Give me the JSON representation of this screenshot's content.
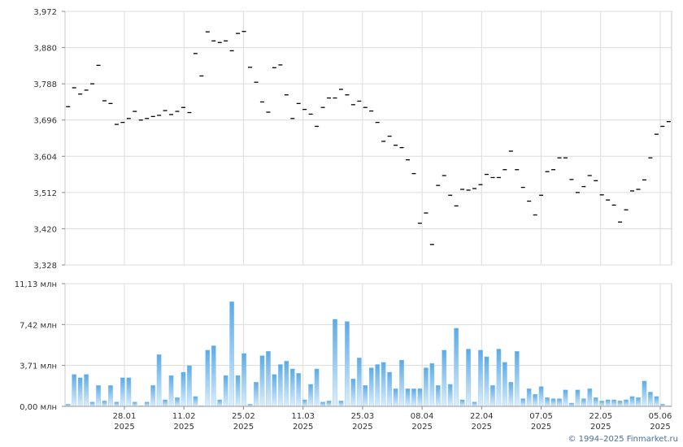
{
  "copyright": "© 1994–2025 Finmarket.ru",
  "chart_data": [
    {
      "type": "scatter",
      "marker": "dash",
      "ylim": [
        3328,
        3972
      ],
      "y_ticks": [
        "3,972",
        "3,880",
        "3,788",
        "3,696",
        "3,604",
        "3,512",
        "3,420",
        "3,328"
      ],
      "grid": true,
      "values": [
        3730,
        3778,
        3762,
        3772,
        3788,
        3835,
        3745,
        3738,
        3685,
        3690,
        3700,
        3718,
        3696,
        3700,
        3705,
        3708,
        3720,
        3710,
        3718,
        3728,
        3715,
        3865,
        3808,
        3920,
        3897,
        3893,
        3897,
        3872,
        3916,
        3921,
        3830,
        3792,
        3742,
        3716,
        3829,
        3836,
        3760,
        3700,
        3738,
        3723,
        3711,
        3680,
        3728,
        3752,
        3752,
        3774,
        3760,
        3735,
        3744,
        3728,
        3719,
        3690,
        3642,
        3655,
        3632,
        3626,
        3595,
        3560,
        3434,
        3460,
        3380,
        3530,
        3555,
        3505,
        3478,
        3520,
        3518,
        3522,
        3532,
        3558,
        3550,
        3550,
        3570,
        3617,
        3570,
        3525,
        3490,
        3455,
        3505,
        3565,
        3570,
        3600,
        3600,
        3545,
        3512,
        3527,
        3555,
        3542,
        3506,
        3493,
        3480,
        3437,
        3468,
        3516,
        3520,
        3544,
        3600,
        3660,
        3680,
        3692
      ]
    },
    {
      "type": "bar",
      "ylim": [
        0,
        11.13
      ],
      "y_ticks": [
        "11,13 млн",
        "7,42 млн",
        "3,71 млн",
        "0,00 млн"
      ],
      "x_ticks": [
        {
          "day": "28.01",
          "year": "2025"
        },
        {
          "day": "11.02",
          "year": "2025"
        },
        {
          "day": "25.02",
          "year": "2025"
        },
        {
          "day": "11.03",
          "year": "2025"
        },
        {
          "day": "25.03",
          "year": "2025"
        },
        {
          "day": "08.04",
          "year": "2025"
        },
        {
          "day": "22.04",
          "year": "2025"
        },
        {
          "day": "07.05",
          "year": "2025"
        },
        {
          "day": "22.05",
          "year": "2025"
        },
        {
          "day": "05.06",
          "year": "2025"
        }
      ],
      "grid": true,
      "colors": {
        "bar_top": "#5aaae8",
        "bar_bottom": "#dceefb"
      },
      "values": [
        0.2,
        2.9,
        2.6,
        2.9,
        0.4,
        1.9,
        0.5,
        1.9,
        0.4,
        2.6,
        2.6,
        0.4,
        0.05,
        0.4,
        1.9,
        4.7,
        0.6,
        2.8,
        0.8,
        3.1,
        3.7,
        0.9,
        0.05,
        5.1,
        5.5,
        0.6,
        2.8,
        9.5,
        2.8,
        4.8,
        0.2,
        2.2,
        4.6,
        5.0,
        2.9,
        3.8,
        4.1,
        3.4,
        3.0,
        0.6,
        2.0,
        3.4,
        0.4,
        0.5,
        7.9,
        0.5,
        7.7,
        2.5,
        4.4,
        1.9,
        3.5,
        3.8,
        4.0,
        3.1,
        1.6,
        4.2,
        1.6,
        1.6,
        1.6,
        3.5,
        3.9,
        1.9,
        5.1,
        2.0,
        7.1,
        0.6,
        5.2,
        0.4,
        5.1,
        4.5,
        1.9,
        5.2,
        4.0,
        2.2,
        5.0,
        0.7,
        1.6,
        1.1,
        1.8,
        0.8,
        0.7,
        0.7,
        1.5,
        0.3,
        1.5,
        0.7,
        1.6,
        0.8,
        0.5,
        0.6,
        0.6,
        0.5,
        0.6,
        0.9,
        0.8,
        2.3,
        1.3,
        0.9,
        0.2,
        0.05
      ]
    }
  ]
}
